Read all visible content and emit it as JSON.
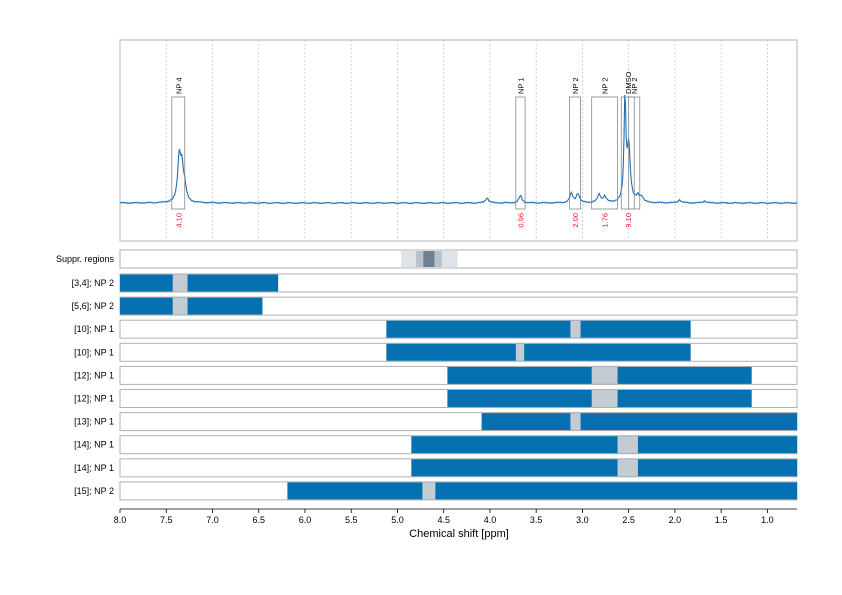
{
  "chart_data": {
    "type": "line",
    "xlabel": "Chemical shift [ppm]",
    "xlim": [
      8.0,
      0.68
    ],
    "x_reversed": true,
    "x_ticks": [
      "8.0",
      "7.5",
      "7.0",
      "6.5",
      "6.0",
      "5.5",
      "5.0",
      "4.5",
      "4.0",
      "3.5",
      "3.0",
      "2.5",
      "2.0",
      "1.5",
      "1.0"
    ],
    "spectrum": {
      "baseline": 0,
      "peaks": [
        {
          "ppm": 7.36,
          "height": 0.42,
          "width": 0.02
        },
        {
          "ppm": 7.33,
          "height": 0.3,
          "width": 0.02
        },
        {
          "ppm": 7.3,
          "height": 0.12,
          "width": 0.02
        },
        {
          "ppm": 4.03,
          "height": 0.05,
          "width": 0.02
        },
        {
          "ppm": 3.67,
          "height": 0.07,
          "width": 0.02
        },
        {
          "ppm": 3.12,
          "height": 0.09,
          "width": 0.02
        },
        {
          "ppm": 3.05,
          "height": 0.09,
          "width": 0.02
        },
        {
          "ppm": 2.82,
          "height": 0.08,
          "width": 0.02
        },
        {
          "ppm": 2.76,
          "height": 0.06,
          "width": 0.02
        },
        {
          "ppm": 2.54,
          "height": 1.0,
          "width": 0.012
        },
        {
          "ppm": 2.5,
          "height": 0.55,
          "width": 0.02
        },
        {
          "ppm": 2.4,
          "height": 0.06,
          "width": 0.02
        },
        {
          "ppm": 2.36,
          "height": 0.05,
          "width": 0.02
        },
        {
          "ppm": 1.95,
          "height": 0.03,
          "width": 0.02
        },
        {
          "ppm": 1.68,
          "height": 0.02,
          "width": 0.02
        }
      ]
    },
    "annotations": [
      {
        "label": "NP 4",
        "ppm_start": 7.44,
        "ppm_end": 7.3,
        "integral": "4.10"
      },
      {
        "label": "NP 1",
        "ppm_start": 3.72,
        "ppm_end": 3.62,
        "integral": "0.96"
      },
      {
        "label": "NP 2",
        "ppm_start": 3.14,
        "ppm_end": 3.02,
        "integral": "2.00"
      },
      {
        "label": "NP 2",
        "ppm_start": 2.9,
        "ppm_end": 2.62,
        "integral": "1.76"
      },
      {
        "label": "DMSO",
        "ppm_start": 2.58,
        "ppm_end": 2.44,
        "integral": "9.10"
      },
      {
        "label": "NP 2",
        "ppm_start": 2.5,
        "ppm_end": 2.38,
        "integral": ""
      }
    ],
    "suppressed_regions": {
      "label": "Suppr. regions",
      "bands": [
        {
          "from": 4.96,
          "to": 4.35,
          "level": "light"
        },
        {
          "from": 4.8,
          "to": 4.52,
          "level": "medium"
        },
        {
          "from": 4.72,
          "to": 4.6,
          "level": "dark"
        }
      ]
    },
    "rows": [
      {
        "label": "[3,4]; NP 2",
        "from": 8.0,
        "to": 6.29,
        "gaps": [
          [
            7.43,
            7.27
          ]
        ]
      },
      {
        "label": "[5,6]; NP 2",
        "from": 8.0,
        "to": 6.46,
        "gaps": [
          [
            7.43,
            7.27
          ]
        ]
      },
      {
        "label": "[10]; NP 1",
        "from": 5.12,
        "to": 1.83,
        "gaps": [
          [
            3.13,
            3.02
          ]
        ]
      },
      {
        "label": "[10]; NP 1",
        "from": 5.12,
        "to": 1.83,
        "gaps": [
          [
            3.72,
            3.63
          ]
        ]
      },
      {
        "label": "[12]; NP 1",
        "from": 4.46,
        "to": 1.17,
        "gaps": [
          [
            2.9,
            2.62
          ]
        ]
      },
      {
        "label": "[12]; NP 1",
        "from": 4.46,
        "to": 1.17,
        "gaps": [
          [
            2.9,
            2.62
          ]
        ]
      },
      {
        "label": "[13]; NP 1",
        "from": 4.09,
        "to": 0.68,
        "gaps": [
          [
            3.13,
            3.02
          ]
        ]
      },
      {
        "label": "[14]; NP 1",
        "from": 4.85,
        "to": 0.68,
        "gaps": [
          [
            2.62,
            2.4
          ]
        ]
      },
      {
        "label": "[14]; NP 1",
        "from": 4.85,
        "to": 0.68,
        "gaps": [
          [
            2.62,
            2.4
          ]
        ]
      },
      {
        "label": "[15]; NP 2",
        "from": 6.19,
        "to": 0.68,
        "gaps": [
          [
            4.73,
            4.59
          ]
        ]
      }
    ],
    "colors": {
      "spectrum": "#1f6fb2",
      "spectrum_alt": "#2e8b57",
      "bar": "#0570b0",
      "gap": "#c4ccd3",
      "supp_light": "#dde3e8",
      "supp_medium": "#b7c2cb",
      "supp_dark": "#6f8190",
      "integral": "#e41a1c",
      "frame": "#b0b0b0",
      "grid": "#c8c8c8"
    }
  }
}
